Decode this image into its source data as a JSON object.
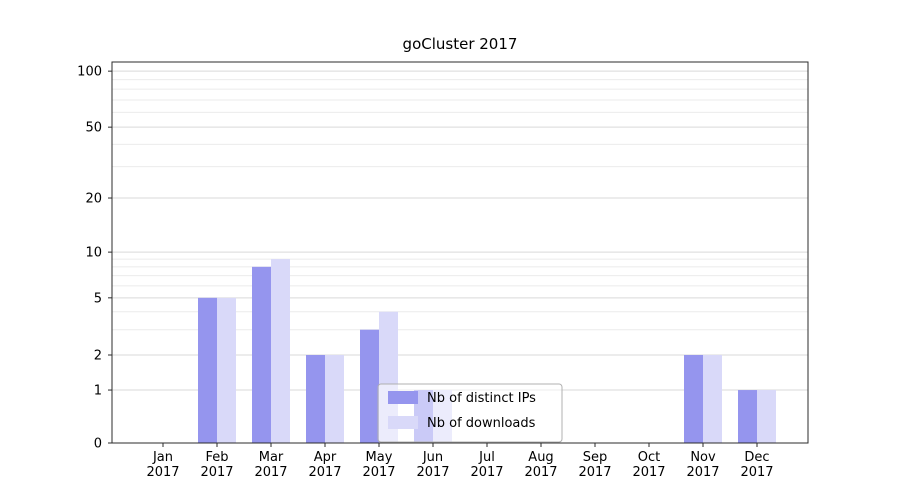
{
  "chart_data": {
    "type": "bar",
    "title": "goCluster 2017",
    "categories": [
      "Jan",
      "Feb",
      "Mar",
      "Apr",
      "May",
      "Jun",
      "Jul",
      "Aug",
      "Sep",
      "Oct",
      "Nov",
      "Dec"
    ],
    "x_tick_year": "2017",
    "series": [
      {
        "name": "Nb of distinct IPs",
        "color": "#9595ee",
        "values": [
          0,
          5,
          8,
          2,
          3,
          1,
          0,
          0,
          0,
          0,
          2,
          1
        ]
      },
      {
        "name": "Nb of downloads",
        "color": "#d9d9f9",
        "values": [
          0,
          5,
          9,
          2,
          4,
          1,
          0,
          0,
          0,
          0,
          2,
          1
        ]
      }
    ],
    "y_axis": {
      "scale": "log-like with zero baseline",
      "ylim": [
        0,
        115
      ],
      "ticks": [
        {
          "value": 0,
          "frac": 0.0
        },
        {
          "value": 1,
          "frac": 0.139
        },
        {
          "value": 2,
          "frac": 0.231
        },
        {
          "value": 5,
          "frac": 0.381
        },
        {
          "value": 10,
          "frac": 0.501
        },
        {
          "value": 20,
          "frac": 0.643
        },
        {
          "value": 50,
          "frac": 0.829
        },
        {
          "value": 100,
          "frac": 0.976
        }
      ],
      "minor_values": [
        3,
        4,
        6,
        7,
        8,
        9,
        30,
        40,
        60,
        70,
        80,
        90
      ]
    },
    "legend": {
      "position": "lower-center"
    },
    "grid": true,
    "colors": {
      "grid_major": "#d9d9d9",
      "grid_minor": "#ebebeb",
      "axis": "#2b2b2b",
      "legend_border": "#b0b0b0"
    }
  }
}
